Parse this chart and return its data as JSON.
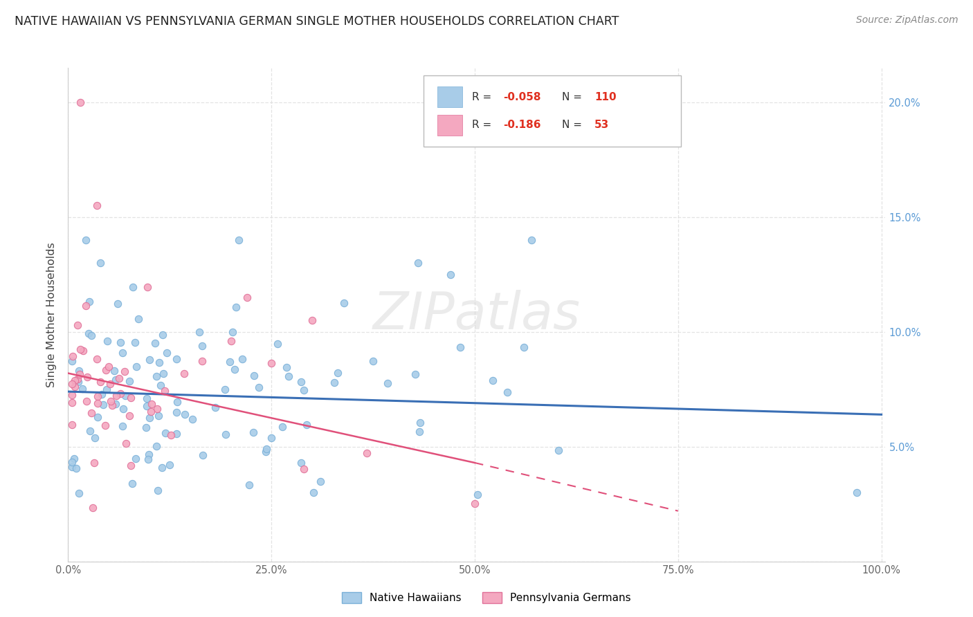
{
  "title": "NATIVE HAWAIIAN VS PENNSYLVANIA GERMAN SINGLE MOTHER HOUSEHOLDS CORRELATION CHART",
  "source": "Source: ZipAtlas.com",
  "ylabel": "Single Mother Households",
  "blue_color": "#a8cce8",
  "blue_edge": "#7ab0d8",
  "pink_color": "#f4a8c0",
  "pink_edge": "#e07098",
  "trendline_blue": "#3a6fb5",
  "trendline_pink": "#e0507a",
  "legend_r_blue": "-0.058",
  "legend_n_blue": "110",
  "legend_r_pink": "-0.186",
  "legend_n_pink": "53",
  "watermark_color": "#d8d8d8",
  "right_axis_color": "#5b9bd5",
  "title_color": "#222222",
  "source_color": "#888888",
  "tick_color": "#666666",
  "grid_color": "#dddddd"
}
